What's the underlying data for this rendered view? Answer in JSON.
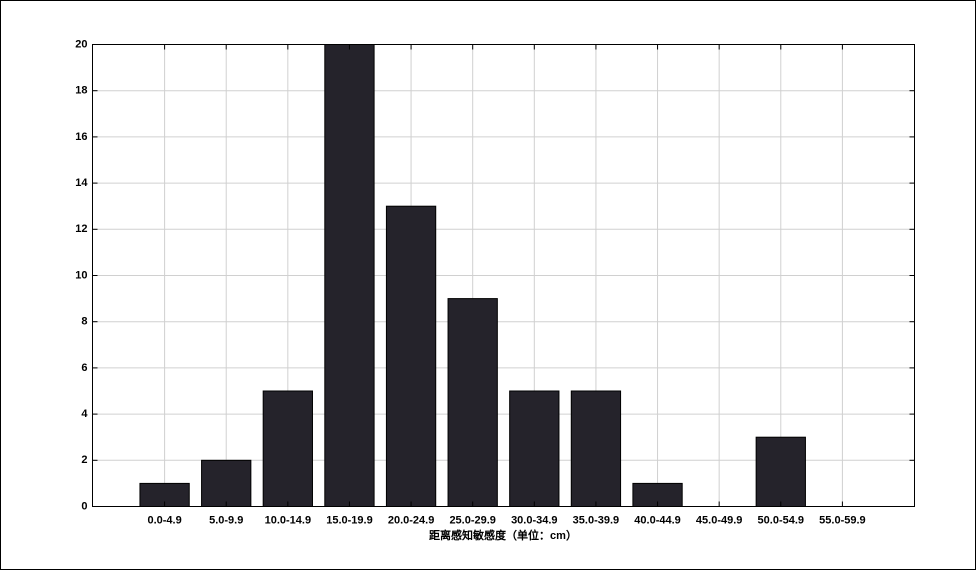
{
  "chart_data": {
    "type": "bar",
    "x_label": "距离感知敏感度（单位：cm）",
    "categories": [
      "0.0-4.9",
      "5.0-9.9",
      "10.0-14.9",
      "15.0-19.9",
      "20.0-24.9",
      "25.0-29.9",
      "30.0-34.9",
      "35.0-39.9",
      "40.0-44.9",
      "45.0-49.9",
      "50.0-54.9",
      "55.0-59.9"
    ],
    "values": [
      1,
      2,
      5,
      20,
      13,
      9,
      5,
      5,
      1,
      0,
      3,
      0
    ],
    "color": "#25232b",
    "ylim": [
      0,
      20
    ],
    "yticks": [
      0,
      2,
      4,
      6,
      8,
      10,
      12,
      14,
      16,
      18,
      20
    ],
    "grid": true
  }
}
